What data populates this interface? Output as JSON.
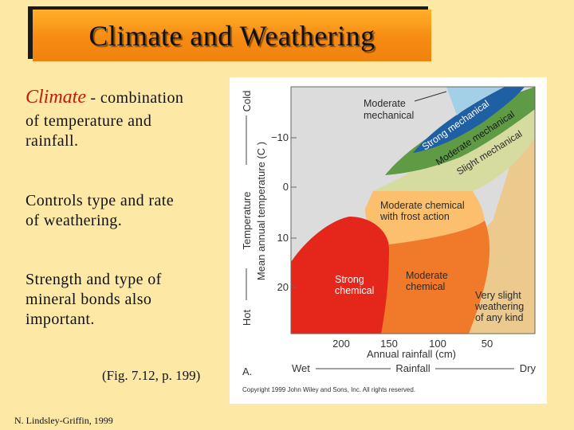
{
  "slide": {
    "title": "Climate and Weathering",
    "para1_em": "Climate",
    "para1_rest": " - combination",
    "para1_line2": "of temperature and",
    "para1_line3": "rainfall.",
    "para2_line1": "Controls type and rate",
    "para2_line2": "of weathering.",
    "para3_line1": "Strength and type of",
    "para3_line2": "mineral bonds also",
    "para3_line3": "important.",
    "fig_ref": "(Fig. 7.12, p. 199)",
    "credit": "N. Lindsley-Griffin, 1999"
  },
  "colors": {
    "background": "#fde8a6",
    "title_orange": "#f68b12",
    "climate_red": "#c21a0c",
    "region_moderate_mechanical": "#a3d0e6",
    "region_strong_mechanical": "#1f5fa3",
    "region_moderate_mechanical_band": "#5f9a45",
    "region_slight_mechanical": "#d6dca0",
    "region_frost": "#fbbf6d",
    "region_moderate_chemical": "#f07a2a",
    "region_strong_chemical": "#e5261a",
    "region_very_slight": "#ecc98d",
    "region_cold_desert": "#dcdcdc"
  },
  "diagram": {
    "vertical_axis": {
      "top": "Cold",
      "bottom": "Hot",
      "label_outer": "Temperature",
      "label_inner": "Mean annual temperature (C )",
      "ticks": [
        "−10",
        "0",
        "10",
        "20"
      ]
    },
    "horizontal_axis": {
      "label_inner": "Annual rainfall (cm)",
      "ticks": [
        "200",
        "150",
        "100",
        "50"
      ],
      "left": "Wet",
      "label_outer": "Rainfall",
      "right": "Dry"
    },
    "regions": {
      "moderate_mechanical_1": "Moderate",
      "moderate_mechanical_2": "mechanical",
      "strong_mechanical": "Strong mechanical",
      "moderate_mechanical_band": "Moderate mechanical",
      "slight_mechanical": "Slight mechanical",
      "frost_1": "Moderate chemical",
      "frost_2": "with frost action",
      "strong_chemical_1": "Strong",
      "strong_chemical_2": "chemical",
      "moderate_chemical_1": "Moderate",
      "moderate_chemical_2": "chemical",
      "very_slight_1": "Very slight",
      "very_slight_2": "weathering",
      "very_slight_3": "of any kind"
    },
    "panel_label": "A.",
    "copyright": "Copyright 1999 John Wiley and Sons, Inc. All rights reserved."
  }
}
